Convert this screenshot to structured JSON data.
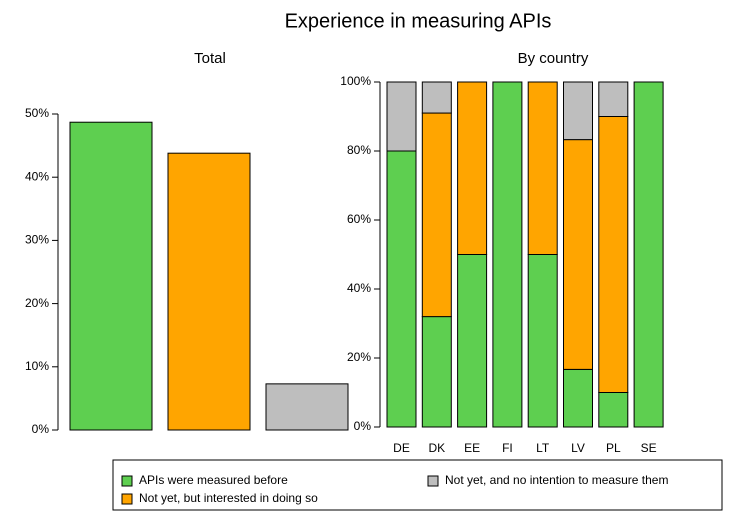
{
  "title": "Experience in measuring APIs",
  "legend_position": "bottom",
  "chart_data": [
    {
      "type": "bar",
      "title": "Total",
      "categories": [
        null,
        null,
        null
      ],
      "values": [
        48.7,
        43.8,
        7.3
      ],
      "colors": [
        "#5ecf50",
        "#ffa500",
        "#bebebe"
      ],
      "ylim": [
        0,
        50
      ],
      "yticks": [
        {
          "value": 0,
          "label": "0%"
        },
        {
          "value": 10,
          "label": "10%"
        },
        {
          "value": 20,
          "label": "20%"
        },
        {
          "value": 30,
          "label": "30%"
        },
        {
          "value": 40,
          "label": "40%"
        },
        {
          "value": 50,
          "label": "50%"
        }
      ]
    },
    {
      "type": "stacked_bar",
      "title": "By country",
      "categories": [
        "DE",
        "DK",
        "EE",
        "FI",
        "LT",
        "LV",
        "PL",
        "SE"
      ],
      "series": [
        {
          "name": "APIs were measured before",
          "color": "#5ecf50",
          "values": [
            80,
            32,
            50,
            100,
            50,
            16.7,
            10,
            100
          ]
        },
        {
          "name": "Not yet, but interested in doing so",
          "color": "#ffa500",
          "values": [
            0,
            59,
            50,
            0,
            50,
            66.6,
            80,
            0
          ]
        },
        {
          "name": "Not yet, and no intention to measure them",
          "color": "#bebebe",
          "values": [
            20,
            9,
            0,
            0,
            0,
            16.7,
            10,
            0
          ]
        }
      ],
      "ylim": [
        0,
        100
      ],
      "yticks": [
        {
          "value": 0,
          "label": "0%"
        },
        {
          "value": 20,
          "label": "20%"
        },
        {
          "value": 40,
          "label": "40%"
        },
        {
          "value": 60,
          "label": "60%"
        },
        {
          "value": 80,
          "label": "80%"
        },
        {
          "value": 100,
          "label": "100%"
        }
      ]
    }
  ]
}
